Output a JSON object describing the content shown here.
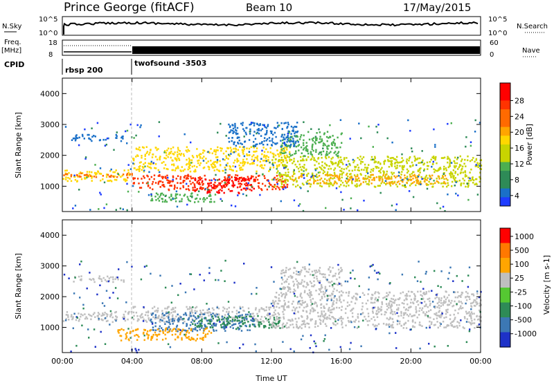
{
  "header": {
    "station": "Prince George (fitACF)",
    "beam": "Beam 10",
    "date": "17/May/2015"
  },
  "strip": {
    "nsky_label": "N.Sky",
    "nsky_ticks": [
      "10^5",
      "10^0"
    ],
    "nsearch_label": "N.Search",
    "nsearch_ticks": [
      "10^5",
      "10^0"
    ],
    "freq_label": "Freq.",
    "freq_unit": "[MHz]",
    "freq_ticks": [
      "18",
      "8"
    ],
    "nave_label": "Nave",
    "nave_ticks": [
      "60",
      "0"
    ],
    "cpid_label": "CPID",
    "cpid_segments": [
      {
        "label": "rbsp 200",
        "start_hr": 0,
        "end_hr": 4
      },
      {
        "label": "twofsound -3503",
        "start_hr": 4,
        "end_hr": 24
      }
    ]
  },
  "chart_data": [
    {
      "type": "heatmap",
      "name": "power",
      "ylabel": "Slant Range [km]",
      "xlabel": "Time UT",
      "xlim": [
        0,
        24
      ],
      "ylim": [
        180,
        4500
      ],
      "yticks": [
        1000,
        2000,
        3000,
        4000
      ],
      "xticks": [
        "00:00",
        "04:00",
        "08:00",
        "12:00",
        "16:00",
        "20:00",
        "00:00"
      ],
      "colorbar": {
        "label": "Power [dB]",
        "ticks": [
          "28",
          "24",
          "20",
          "16",
          "12",
          "8",
          "4"
        ],
        "colors": [
          "#1e3cff",
          "#1a70c8",
          "#2e8b57",
          "#4caf50",
          "#c8d400",
          "#ffd700",
          "#ffa500",
          "#ff6a00",
          "#ff3300",
          "#ff0000"
        ]
      },
      "regions": [
        {
          "t0": 0.0,
          "t1": 4.0,
          "r0": 1180,
          "r1": 1550,
          "level": 0.55
        },
        {
          "t0": 0.0,
          "t1": 4.0,
          "r0": 1300,
          "r1": 1450,
          "level": 0.75
        },
        {
          "t0": 0.5,
          "t1": 3.5,
          "r0": 2500,
          "r1": 2700,
          "level": 0.15
        },
        {
          "t0": 4.0,
          "t1": 13.0,
          "r0": 900,
          "r1": 1400,
          "level": 0.85
        },
        {
          "t0": 7.5,
          "t1": 11.0,
          "r0": 800,
          "r1": 1300,
          "level": 0.95
        },
        {
          "t0": 4.0,
          "t1": 13.0,
          "r0": 1500,
          "r1": 2300,
          "level": 0.55
        },
        {
          "t0": 5.0,
          "t1": 9.0,
          "r0": 500,
          "r1": 800,
          "level": 0.35
        },
        {
          "t0": 12.0,
          "t1": 24.0,
          "r0": 1000,
          "r1": 2000,
          "level": 0.45
        },
        {
          "t0": 13.0,
          "t1": 22.0,
          "r0": 1100,
          "r1": 1400,
          "level": 0.7
        },
        {
          "t0": 12.5,
          "t1": 16.0,
          "r0": 2000,
          "r1": 2800,
          "level": 0.35
        },
        {
          "t0": 9.5,
          "t1": 13.5,
          "r0": 2300,
          "r1": 3100,
          "level": 0.2
        }
      ]
    },
    {
      "type": "heatmap",
      "name": "velocity",
      "ylabel": "Slant Range [km]",
      "xlabel": "Time UT",
      "xlim": [
        0,
        24
      ],
      "ylim": [
        180,
        4500
      ],
      "yticks": [
        1000,
        2000,
        3000,
        4000
      ],
      "xticks": [
        "00:00",
        "04:00",
        "08:00",
        "12:00",
        "16:00",
        "20:00",
        "00:00"
      ],
      "colorbar": {
        "label": "Velocity [m s-1]",
        "ticks": [
          "1000",
          "500",
          "100",
          "25",
          "-25",
          "-100",
          "-500",
          "-1000"
        ],
        "colors": [
          "#1e32c8",
          "#3c78b4",
          "#2e8b57",
          "#55c832",
          "#bfbfbf",
          "#ffa500",
          "#ff7800",
          "#ff0000"
        ]
      },
      "regions": [
        {
          "t0": 0.0,
          "t1": 4.0,
          "r0": 1200,
          "r1": 1550,
          "level": 0.5
        },
        {
          "t0": 4.0,
          "t1": 12.0,
          "r0": 1200,
          "r1": 1700,
          "level": 0.5
        },
        {
          "t0": 5.0,
          "t1": 11.0,
          "r0": 900,
          "r1": 1500,
          "level": 0.2
        },
        {
          "t0": 7.5,
          "t1": 12.5,
          "r0": 1000,
          "r1": 1400,
          "level": 0.3
        },
        {
          "t0": 3.0,
          "t1": 8.5,
          "r0": 600,
          "r1": 1000,
          "level": 0.72
        },
        {
          "t0": 12.0,
          "t1": 24.0,
          "r0": 1000,
          "r1": 2200,
          "level": 0.5
        },
        {
          "t0": 12.5,
          "t1": 16.0,
          "r0": 2200,
          "r1": 3000,
          "level": 0.5
        },
        {
          "t0": 0.5,
          "t1": 3.5,
          "r0": 2500,
          "r1": 2700,
          "level": 0.5
        }
      ]
    }
  ]
}
